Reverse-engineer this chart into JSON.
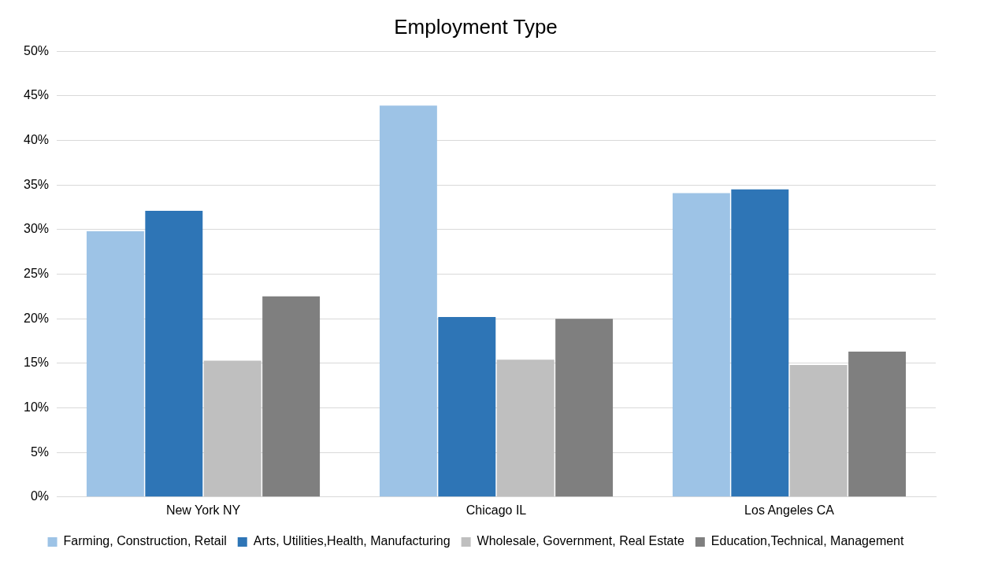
{
  "chart_data": {
    "type": "bar",
    "title": "Employment Type",
    "categories": [
      "New York NY",
      "Chicago IL",
      "Los Angeles CA"
    ],
    "series": [
      {
        "name": "Farming, Construction, Retail",
        "color": "#9dc3e6",
        "values": [
          29.8,
          43.9,
          34.1
        ]
      },
      {
        "name": "Arts, Utilities,Health, Manufacturing",
        "color": "#2e75b6",
        "values": [
          32.1,
          20.2,
          34.5
        ]
      },
      {
        "name": "Wholesale, Government, Real Estate",
        "color": "#bfbfbf",
        "values": [
          15.3,
          15.4,
          14.8
        ]
      },
      {
        "name": "Education,Technical, Management",
        "color": "#7f7f7f",
        "values": [
          22.5,
          20.0,
          16.3
        ]
      }
    ],
    "ylim": [
      0,
      50
    ],
    "yticks": [
      {
        "value": 0,
        "label": "0%"
      },
      {
        "value": 5,
        "label": "5%"
      },
      {
        "value": 10,
        "label": "10%"
      },
      {
        "value": 15,
        "label": "15%"
      },
      {
        "value": 20,
        "label": "20%"
      },
      {
        "value": 25,
        "label": "25%"
      },
      {
        "value": 30,
        "label": "30%"
      },
      {
        "value": 35,
        "label": "35%"
      },
      {
        "value": 40,
        "label": "40%"
      },
      {
        "value": 45,
        "label": "45%"
      },
      {
        "value": 50,
        "label": "50%"
      }
    ],
    "grid": "y",
    "legend": "bottom"
  }
}
